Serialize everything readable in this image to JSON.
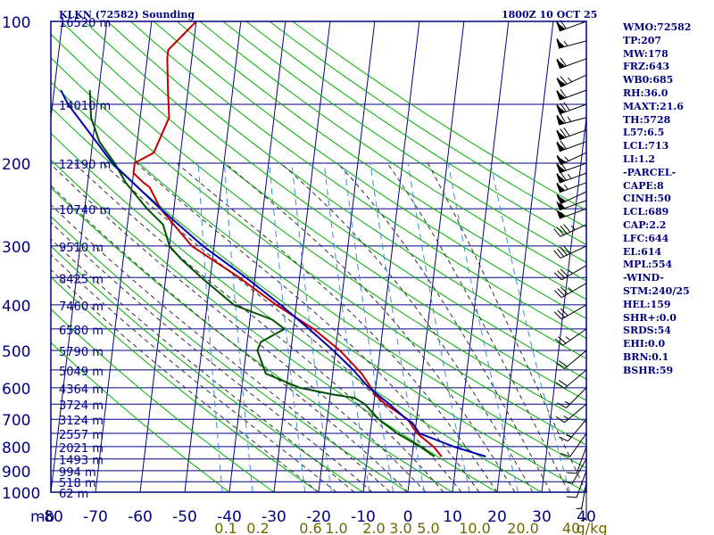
{
  "header": {
    "station": "KLKN (72582) Sounding",
    "valid_time": "1800Z 10 OCT 25"
  },
  "indices": [
    "WMO:72582",
    "TP:207",
    "MW:178",
    "FRZ:643",
    "WB0:685",
    "RH:36.0",
    "MAXT:21.6",
    "TH:5728",
    "L57:6.5",
    "LCL:713",
    "LI:1.2",
    "-PARCEL-",
    "CAPE:8",
    "CINH:50",
    "LCL:689",
    "CAP:2.2",
    "LFC:644",
    "EL:614",
    "MPL:554",
    "-WIND-",
    "STM:240/25",
    "HEL:159",
    "SHR+:0.0",
    "SRDS:54",
    "EHI:0.0",
    "BRN:0.1",
    "BSHR:59"
  ],
  "colors": {
    "frame": "#000080",
    "isotherm": "#000080",
    "dry_adiabat": "#00b000",
    "moist_adiabat": "#303030",
    "mixing_ratio": "#3a8fd8",
    "temperature": "#c00000",
    "dewpoint": "#005000",
    "parcel": "#0000b0",
    "mixing_labels": "#6a6a00"
  },
  "chart_data": {
    "type": "line",
    "subtype": "skew-T log-P",
    "y_axis": {
      "unit_label": "mb",
      "scale": "log",
      "range": [
        100,
        1000
      ],
      "pressure_ticks": [
        100,
        200,
        300,
        400,
        500,
        600,
        700,
        800,
        900,
        1000
      ]
    },
    "x_axis": {
      "range": [
        -80,
        40
      ],
      "temperature_ticks": [
        -80,
        -70,
        -60,
        -50,
        -40,
        -30,
        -20,
        -10,
        0,
        10,
        20,
        30,
        40
      ],
      "tick_labels": [
        "-80",
        "-70",
        "-60",
        "-50",
        "-40",
        "-30",
        "-20",
        "-10",
        "0",
        "10",
        "20",
        "30",
        "40"
      ]
    },
    "mixing_ratio_labels": [
      "0.1",
      "0.2",
      "0.6",
      "1.0",
      "2.0",
      "3.0",
      "5.0",
      "10.0",
      "20.0",
      "40",
      "g/kg"
    ],
    "height_labels": [
      {
        "p": 100,
        "label": "16520 m"
      },
      {
        "p": 150,
        "label": "14010 m"
      },
      {
        "p": 200,
        "label": "12190 m"
      },
      {
        "p": 250,
        "label": "10740 m"
      },
      {
        "p": 300,
        "label": "9510 m"
      },
      {
        "p": 350,
        "label": "8425 m"
      },
      {
        "p": 400,
        "label": "7460 m"
      },
      {
        "p": 450,
        "label": "6580 m"
      },
      {
        "p": 500,
        "label": "5790 m"
      },
      {
        "p": 550,
        "label": "5049 m"
      },
      {
        "p": 600,
        "label": "4364 m"
      },
      {
        "p": 650,
        "label": "3724 m"
      },
      {
        "p": 700,
        "label": "3124 m"
      },
      {
        "p": 750,
        "label": "2557 m"
      },
      {
        "p": 800,
        "label": "2021 m"
      },
      {
        "p": 850,
        "label": "1493 m"
      },
      {
        "p": 900,
        "label": "994 m"
      },
      {
        "p": 950,
        "label": "518 m"
      },
      {
        "p": 1000,
        "label": "62 m"
      }
    ],
    "series": [
      {
        "id": "temperature",
        "p": [
          840,
          800,
          750,
          700,
          650,
          620,
          600,
          560,
          500,
          450,
          400,
          350,
          300,
          250,
          225,
          220,
          210,
          200,
          190,
          160,
          140,
          120,
          115,
          100
        ],
        "t": [
          6.6,
          4.5,
          0.5,
          -2.0,
          -7.4,
          -10.0,
          -11.0,
          -13.5,
          -19.0,
          -25.5,
          -34.5,
          -43.5,
          -55.0,
          -63.0,
          -66.0,
          -67.5,
          -70.0,
          -70.0,
          -66.0,
          -63.5,
          -64.5,
          -65.5,
          -65.5,
          -60.0
        ]
      },
      {
        "id": "dewpoint",
        "p": [
          840,
          800,
          750,
          700,
          650,
          630,
          620,
          600,
          560,
          500,
          480,
          450,
          430,
          400,
          350,
          320,
          300,
          270,
          250,
          220,
          200,
          180,
          160,
          140
        ],
        "t": [
          5.0,
          1.5,
          -4.0,
          -8.5,
          -12.0,
          -14.5,
          -19.5,
          -27.0,
          -35.0,
          -37.5,
          -37.0,
          -32.0,
          -35.0,
          -44.0,
          -52.0,
          -57.0,
          -60.0,
          -62.0,
          -66.0,
          -71.5,
          -74.5,
          -78.5,
          -81.0,
          -82.0
        ]
      },
      {
        "id": "parcel",
        "p": [
          840,
          800,
          750,
          713,
          700,
          650,
          600,
          550,
          500,
          450,
          400,
          350,
          300,
          250,
          200,
          150,
          140
        ],
        "t": [
          16.5,
          9.0,
          1.0,
          -0.8,
          -2.2,
          -6.5,
          -11.5,
          -15.5,
          -20.5,
          -26.5,
          -33.5,
          -42.0,
          -52.5,
          -63.0,
          -75.0,
          -86.5,
          -88.5
        ]
      }
    ],
    "wind_profile": {
      "p": [
        100,
        110,
        120,
        130,
        140,
        150,
        160,
        170,
        180,
        190,
        200,
        210,
        220,
        230,
        240,
        250,
        270,
        300,
        330,
        360,
        400,
        450,
        500,
        550,
        600,
        650,
        700,
        750,
        800,
        850,
        900,
        950,
        1000
      ],
      "dir": [
        250,
        255,
        250,
        245,
        250,
        250,
        255,
        250,
        250,
        245,
        250,
        250,
        250,
        245,
        250,
        250,
        245,
        245,
        240,
        240,
        240,
        235,
        230,
        230,
        225,
        230,
        220,
        215,
        200,
        210,
        200,
        190,
        180
      ],
      "spd": [
        70,
        65,
        70,
        75,
        70,
        80,
        75,
        80,
        70,
        65,
        70,
        75,
        65,
        60,
        55,
        55,
        45,
        40,
        35,
        35,
        30,
        25,
        20,
        20,
        15,
        15,
        15,
        10,
        10,
        10,
        10,
        5,
        5
      ]
    }
  }
}
